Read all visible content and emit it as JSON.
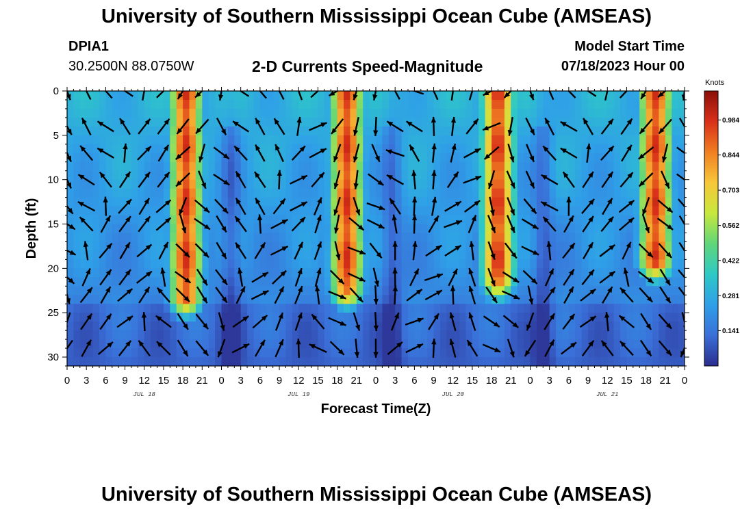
{
  "header": {
    "title": "University of Southern Mississippi Ocean Cube (AMSEAS)",
    "station_id": "DPIA1",
    "station_coords": "30.2500N  88.0750W",
    "plot_title": "2-D Currents Speed-Magnitude",
    "model_label": "Model Start Time",
    "model_date": "07/18/2023 Hour 00"
  },
  "footer": {
    "title": "University of Southern Mississippi Ocean Cube (AMSEAS)"
  },
  "colors": {
    "arrow": "#000000",
    "scale": [
      "#2b2d8e",
      "#3a6fd8",
      "#2f9fe8",
      "#2ec9c6",
      "#5fd67a",
      "#c8e83c",
      "#f7c73a",
      "#f07f22",
      "#d9301a",
      "#8b0f08"
    ]
  },
  "chart_data": {
    "type": "heatmap",
    "title": "2-D Currents Speed-Magnitude",
    "xlabel": "Forecast Time(Z)",
    "ylabel": "Depth (ft)",
    "x_tick_labels": [
      "0",
      "3",
      "6",
      "9",
      "12",
      "15",
      "18",
      "21",
      "0",
      "3",
      "6",
      "9",
      "12",
      "15",
      "18",
      "21",
      "0",
      "3",
      "6",
      "9",
      "12",
      "15",
      "18",
      "21",
      "0",
      "3",
      "6",
      "9",
      "12",
      "15",
      "18",
      "21",
      "0"
    ],
    "x_range_hours": [
      0,
      96
    ],
    "day_labels": [
      {
        "label": "JUL 18",
        "hour": 12
      },
      {
        "label": "JUL 19",
        "hour": 36
      },
      {
        "label": "JUL 20",
        "hour": 60
      },
      {
        "label": "JUL 21",
        "hour": 84
      }
    ],
    "y_ticks": [
      0,
      5,
      10,
      15,
      20,
      25,
      30
    ],
    "y_range_ft": [
      0,
      31
    ],
    "y_inverted": true,
    "colorbar": {
      "unit": "Knots",
      "range": [
        0,
        1.1
      ],
      "tick_values": [
        0.141,
        0.281,
        0.422,
        0.562,
        0.703,
        0.844,
        0.984
      ],
      "tick_labels": [
        "0.141",
        "0.281",
        "0.422",
        "0.562",
        "0.703",
        "0.844",
        "0.984"
      ]
    },
    "max_speed_bands": [
      {
        "center_hour": 18.5,
        "peak_knots": 1.0,
        "depth_extent_ft": 23
      },
      {
        "center_hour": 43.5,
        "peak_knots": 1.0,
        "depth_extent_ft": 22
      },
      {
        "center_hour": 67.0,
        "peak_knots": 1.0,
        "depth_extent_ft": 21
      },
      {
        "center_hour": 91.5,
        "peak_knots": 1.0,
        "depth_extent_ft": 19
      }
    ],
    "arrow_depths_ft": [
      0,
      4,
      7,
      10,
      13,
      15,
      18,
      21,
      23,
      26,
      29
    ],
    "arrow_time_step_hours": 3
  }
}
